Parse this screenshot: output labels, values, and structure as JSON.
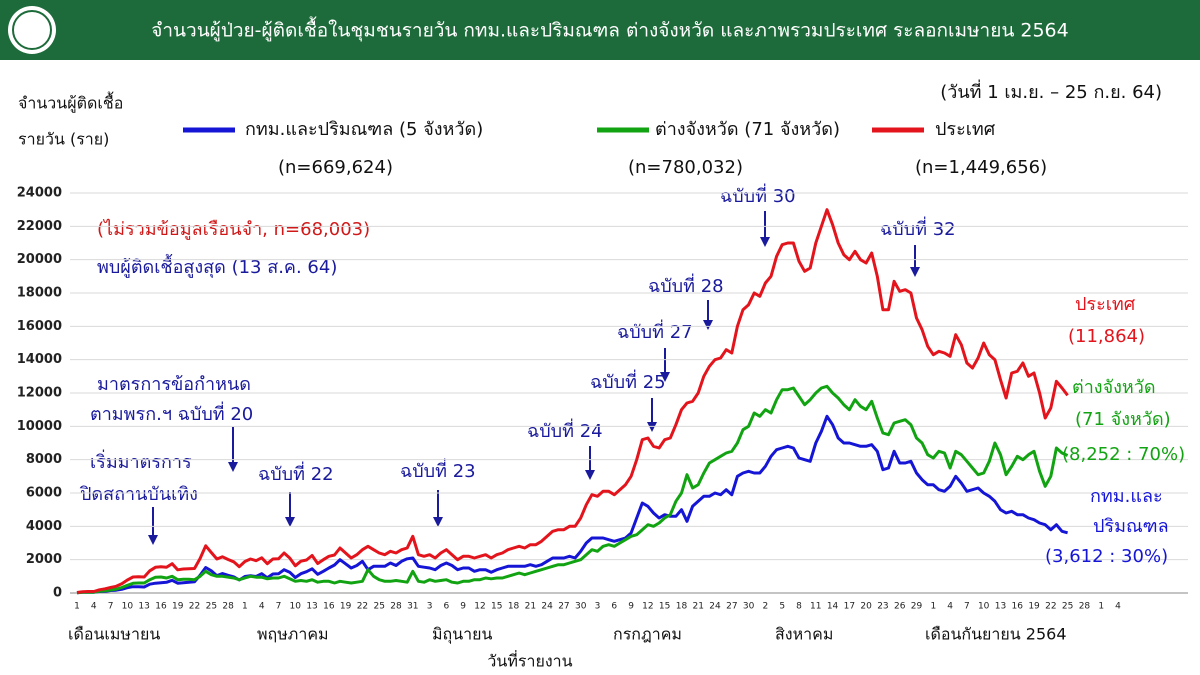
{
  "chart_data": {
    "type": "line",
    "title": "จำนวนผู้ป่วย-ผู้ติดเชื้อในชุมชนรายวัน กทม.และปริมณฑล ต่างจังหวัด และภาพรวมประเทศ ระลอกเมษายน 2564",
    "subtitle": "(วันที่ 1 เม.ย. – 25 ก.ย. 64)",
    "ylabel": [
      "จำนวนผู้ติดเชื้อ",
      "รายวัน (ราย)"
    ],
    "xlabel": "วันที่รายงาน",
    "month_labels": [
      "เดือนเมษายน",
      "พฤษภาคม",
      "มิถุนายน",
      "กรกฎาคม",
      "สิงหาคม",
      "เดือนกันยายน 2564"
    ],
    "annotations": {
      "excluded": "(ไม่รวมข้อมูลเรือนจำ, n=68,003)",
      "peak": "พบผู้ติดเชื้อสูงสุด (13 ส.ค. 64)",
      "decree20": [
        "มาตรการข้อกำหนด",
        "ตามพรก.ฯ ฉบับที่ 20"
      ],
      "entertainment": [
        "เริ่มมาตรการ",
        "ปิดสถานบันเทิง"
      ],
      "decree22": "ฉบับที่ 22",
      "decree23": "ฉบับที่ 23",
      "decree24": "ฉบับที่ 24",
      "decree25": "ฉบับที่ 25",
      "decree27": "ฉบับที่ 27",
      "decree28": "ฉบับที่ 28",
      "decree30": "ฉบับที่ 30",
      "decree32": "ฉบับที่ 32"
    },
    "ylim": [
      0,
      24000
    ],
    "yticks": [
      0,
      2000,
      4000,
      6000,
      8000,
      10000,
      12000,
      14000,
      16000,
      18000,
      20000,
      22000,
      24000
    ],
    "grid": true,
    "categories": [
      "1",
      null,
      null,
      "4",
      null,
      null,
      "7",
      null,
      null,
      "10",
      null,
      null,
      "13",
      null,
      null,
      "16",
      null,
      null,
      "19",
      null,
      null,
      "22",
      null,
      null,
      "25",
      null,
      null,
      "28",
      null,
      null,
      "1",
      null,
      null,
      "4",
      null,
      null,
      "7",
      null,
      null,
      "10",
      null,
      null,
      "13",
      null,
      null,
      "16",
      null,
      null,
      "19",
      null,
      null,
      "22",
      null,
      null,
      "25",
      null,
      null,
      "28",
      null,
      null,
      "31",
      null,
      null,
      "3",
      null,
      null,
      "6",
      null,
      null,
      "9",
      null,
      null,
      "12",
      null,
      null,
      "15",
      null,
      null,
      "18",
      null,
      null,
      "21",
      null,
      null,
      "24",
      null,
      null,
      "27",
      null,
      null,
      "30",
      null,
      null,
      "3",
      null,
      null,
      "6",
      null,
      null,
      "9",
      null,
      null,
      "12",
      null,
      null,
      "15",
      null,
      null,
      "18",
      null,
      null,
      "21",
      null,
      null,
      "24",
      null,
      null,
      "27",
      null,
      null,
      "30",
      null,
      null,
      "2",
      null,
      null,
      "5",
      null,
      null,
      "8",
      null,
      null,
      "11",
      null,
      null,
      "14",
      null,
      null,
      "17",
      null,
      null,
      "20",
      null,
      null,
      "23",
      null,
      null,
      "26",
      null,
      null,
      "29",
      null,
      null,
      "1",
      null,
      null,
      "4",
      null,
      null,
      "7",
      null,
      null,
      "10",
      null,
      null,
      "13",
      null,
      null,
      "16",
      null,
      null,
      "19",
      null,
      null,
      "22",
      null,
      null,
      "25",
      null,
      null,
      "28",
      null,
      null,
      "1",
      null,
      null,
      "4"
    ],
    "series": [
      {
        "name": "กทม.และปริมณฑล (5 จังหวัด)",
        "n_label": "(n=669,624)",
        "color": "#1515d6",
        "end_labels": [
          "กทม.และ",
          "ปริมณฑล",
          "(3,612 : 30%)"
        ],
        "values": [
          20,
          40,
          40,
          40,
          90,
          110,
          150,
          170,
          220,
          320,
          380,
          380,
          360,
          530,
          590,
          620,
          640,
          760,
          590,
          620,
          640,
          670,
          1070,
          1530,
          1330,
          1040,
          1170,
          1060,
          970,
          780,
          990,
          1040,
          990,
          1160,
          910,
          1140,
          1150,
          1400,
          1250,
          930,
          1160,
          1280,
          1450,
          1120,
          1300,
          1500,
          1680,
          2000,
          1750,
          1500,
          1650,
          1900,
          1400,
          1600,
          1600,
          1600,
          1800,
          1650,
          1900,
          2050,
          2100,
          1600,
          1550,
          1500,
          1400,
          1650,
          1800,
          1650,
          1400,
          1500,
          1500,
          1300,
          1400,
          1400,
          1250,
          1400,
          1500,
          1600,
          1600,
          1600,
          1600,
          1700,
          1600,
          1700,
          1900,
          2100,
          2100,
          2100,
          2200,
          2100,
          2500,
          3000,
          3300,
          3300,
          3300,
          3200,
          3100,
          3200,
          3300,
          3600,
          4500,
          5400,
          5200,
          4800,
          4500,
          4700,
          4600,
          4600,
          5000,
          4300,
          5200,
          5500,
          5800,
          5800,
          6000,
          5900,
          6200,
          5900,
          7000,
          7200,
          7300,
          7200,
          7200,
          7600,
          8200,
          8600,
          8700,
          8800,
          8700,
          8100,
          8000,
          7900,
          9000,
          9700,
          10600,
          10100,
          9300,
          9000,
          9000,
          8900,
          8800,
          8800,
          8900,
          8500,
          7400,
          7500,
          8500,
          7800,
          7800,
          7900,
          7200,
          6800,
          6500,
          6500,
          6200,
          6100,
          6400,
          7000,
          6600,
          6100,
          6200,
          6300,
          6000,
          5800,
          5500,
          5000,
          4800,
          4900,
          4700,
          4700,
          4500,
          4400,
          4200,
          4100,
          3800,
          4100,
          3700,
          3612,
          null,
          null,
          null,
          null,
          null,
          null,
          null,
          null,
          null
        ]
      },
      {
        "name": "ต่างจังหวัด (71 จังหวัด)",
        "n_label": "(n=780,032)",
        "color": "#12a312",
        "end_labels": [
          "ต่างจังหวัด",
          "(71 จังหวัด)",
          "(8,252 : 70%)"
        ],
        "values": [
          10,
          40,
          50,
          50,
          100,
          140,
          180,
          230,
          330,
          460,
          580,
          600,
          600,
          800,
          950,
          960,
          900,
          1000,
          800,
          820,
          820,
          800,
          1000,
          1300,
          1100,
          1000,
          1000,
          950,
          900,
          800,
          900,
          1000,
          950,
          950,
          850,
          900,
          900,
          1000,
          850,
          700,
          750,
          700,
          800,
          650,
          700,
          700,
          600,
          700,
          650,
          600,
          650,
          700,
          1400,
          1000,
          800,
          700,
          700,
          750,
          700,
          650,
          1300,
          700,
          650,
          800,
          700,
          750,
          800,
          650,
          600,
          700,
          700,
          800,
          800,
          900,
          850,
          900,
          900,
          1000,
          1100,
          1200,
          1100,
          1200,
          1300,
          1400,
          1500,
          1600,
          1700,
          1700,
          1800,
          1900,
          2000,
          2300,
          2600,
          2500,
          2800,
          2900,
          2800,
          3000,
          3200,
          3400,
          3500,
          3800,
          4100,
          4000,
          4200,
          4500,
          4700,
          5500,
          6000,
          7100,
          6300,
          6500,
          7200,
          7800,
          8000,
          8200,
          8400,
          8500,
          9000,
          9800,
          10000,
          10800,
          10600,
          11000,
          10800,
          11600,
          12200,
          12200,
          12300,
          11800,
          11300,
          11600,
          12000,
          12300,
          12400,
          12000,
          11700,
          11300,
          11000,
          11600,
          11200,
          11000,
          11500,
          10500,
          9600,
          9500,
          10200,
          10300,
          10400,
          10100,
          9300,
          9000,
          8300,
          8100,
          8500,
          8400,
          7500,
          8500,
          8300,
          7900,
          7500,
          7100,
          7200,
          7900,
          9000,
          8300,
          7100,
          7600,
          8200,
          8000,
          8300,
          8500,
          7300,
          6400,
          7000,
          8700,
          8400,
          8252,
          null,
          null,
          null,
          null,
          null,
          null,
          null,
          null,
          null
        ]
      },
      {
        "name": "ประเทศ",
        "n_label": "(n=1,449,656)",
        "color": "#e3141c",
        "end_labels": [
          "ประเทศ",
          "(11,864)"
        ],
        "values": [
          30,
          80,
          90,
          90,
          190,
          250,
          330,
          400,
          550,
          780,
          960,
          980,
          960,
          1330,
          1540,
          1580,
          1540,
          1760,
          1390,
          1440,
          1460,
          1470,
          2070,
          2830,
          2430,
          2040,
          2170,
          2010,
          1870,
          1580,
          1890,
          2040,
          1940,
          2110,
          1760,
          2040,
          2050,
          2400,
          2100,
          1630,
          1910,
          1980,
          2250,
          1770,
          2000,
          2200,
          2280,
          2700,
          2400,
          2100,
          2300,
          2600,
          2800,
          2600,
          2400,
          2300,
          2500,
          2400,
          2600,
          2700,
          3400,
          2300,
          2200,
          2300,
          2100,
          2400,
          2600,
          2300,
          2000,
          2200,
          2200,
          2100,
          2200,
          2300,
          2100,
          2300,
          2400,
          2600,
          2700,
          2800,
          2700,
          2900,
          2900,
          3100,
          3400,
          3700,
          3800,
          3800,
          4000,
          4000,
          4500,
          5300,
          5900,
          5800,
          6100,
          6100,
          5900,
          6200,
          6500,
          7000,
          8000,
          9200,
          9300,
          8800,
          8700,
          9200,
          9300,
          10100,
          11000,
          11400,
          11500,
          12000,
          13000,
          13600,
          14000,
          14100,
          14600,
          14400,
          16000,
          17000,
          17300,
          18000,
          17800,
          18600,
          19000,
          20200,
          20900,
          21000,
          21000,
          19900,
          19300,
          19500,
          21000,
          22000,
          23000,
          22100,
          21000,
          20300,
          20000,
          20500,
          20000,
          19800,
          20400,
          19000,
          17000,
          17000,
          18700,
          18100,
          18200,
          18000,
          16500,
          15800,
          14800,
          14300,
          14500,
          14400,
          14200,
          15500,
          14900,
          13800,
          13500,
          14100,
          15000,
          14300,
          14000,
          12800,
          11700,
          13200,
          13300,
          13800,
          13000,
          13200,
          12000,
          10500,
          11100,
          12700,
          12300,
          11864,
          null,
          null,
          null,
          null,
          null,
          null,
          null,
          null,
          null
        ]
      }
    ]
  }
}
